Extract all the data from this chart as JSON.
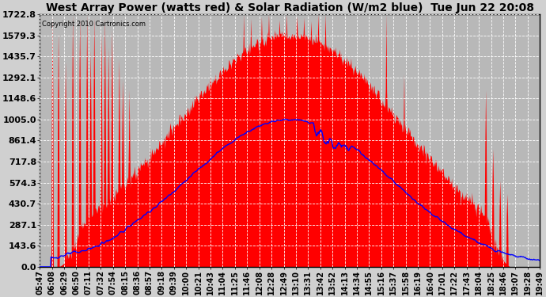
{
  "title": "West Array Power (watts red) & Solar Radiation (W/m2 blue)  Tue Jun 22 20:08",
  "copyright": "Copyright 2010 Cartronics.com",
  "bg_color": "#d0d0d0",
  "plot_bg_color": "#b8b8b8",
  "yticks": [
    0.0,
    143.6,
    287.1,
    430.7,
    574.3,
    717.8,
    861.4,
    1005.0,
    1148.6,
    1292.1,
    1435.7,
    1579.3,
    1722.8
  ],
  "ymax": 1722.8,
  "x_labels": [
    "05:47",
    "06:08",
    "06:29",
    "06:50",
    "07:11",
    "07:32",
    "07:54",
    "08:15",
    "08:36",
    "08:57",
    "09:18",
    "09:39",
    "10:00",
    "10:21",
    "10:43",
    "11:04",
    "11:25",
    "11:46",
    "12:08",
    "12:28",
    "12:49",
    "13:10",
    "13:31",
    "13:42",
    "13:52",
    "14:13",
    "14:34",
    "14:55",
    "15:16",
    "15:37",
    "15:58",
    "16:19",
    "16:40",
    "17:01",
    "17:22",
    "17:43",
    "18:04",
    "18:25",
    "18:46",
    "19:07",
    "19:28",
    "19:49"
  ],
  "red_fill_color": "#ff0000",
  "blue_line_color": "#0000ff",
  "grid_color": "#ffffff",
  "title_fontsize": 10,
  "tick_fontsize": 7,
  "yticklabel_fontsize": 8
}
